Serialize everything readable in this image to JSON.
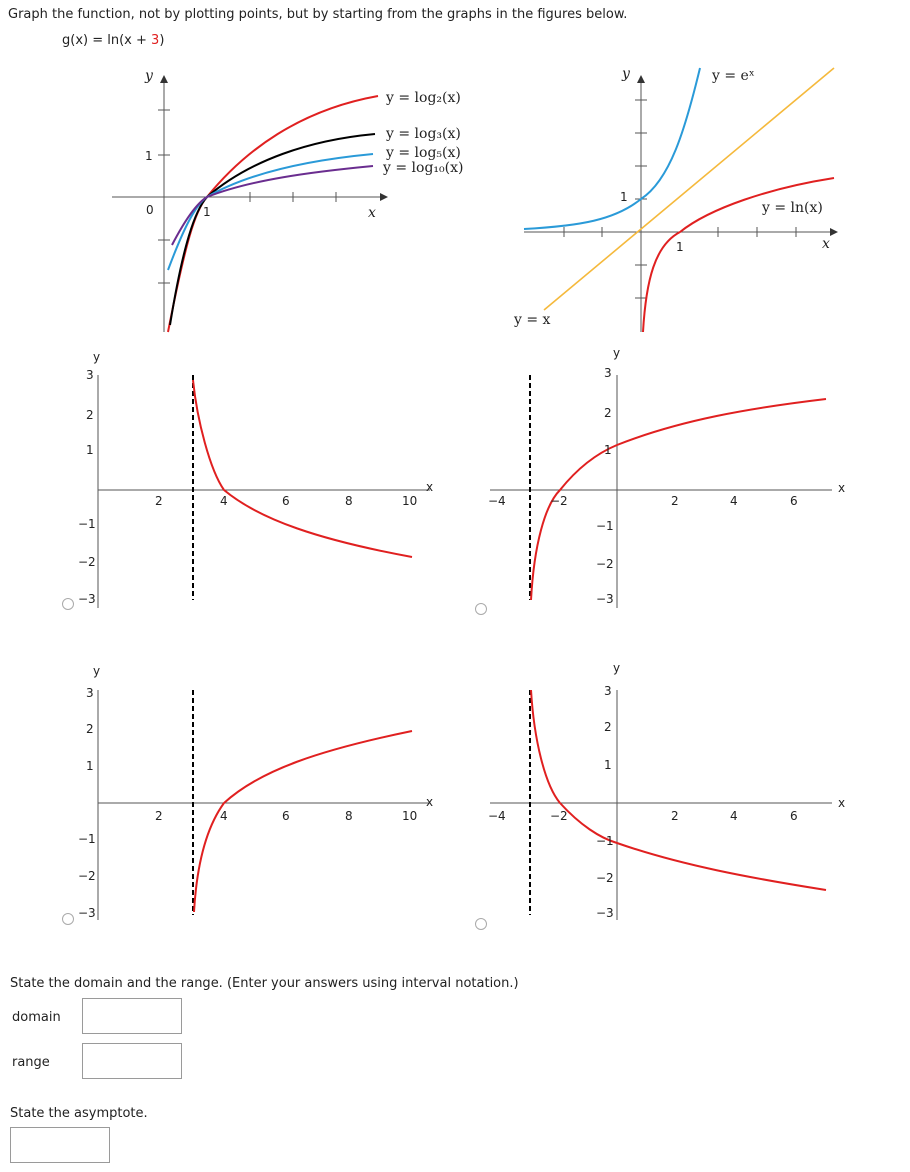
{
  "prompt": "Graph the function, not by plotting points, but by starting from the graphs in the figures below.",
  "function": {
    "lhs": "g(x) = ln(x + ",
    "constant": "3",
    "close": ")"
  },
  "reference_graphs": {
    "log_family": {
      "y_label": "y",
      "x_label": "x",
      "origin": "0",
      "one_x": "1",
      "one_y": "1",
      "curves": [
        {
          "label": "y = log₂(x)",
          "color": "#e02020"
        },
        {
          "label": "y = log₃(x)",
          "color": "#000000"
        },
        {
          "label": "y = log₅(x)",
          "color": "#2a9ad8"
        },
        {
          "label": "y = log₁₀(x)",
          "color": "#6a2d8f"
        }
      ]
    },
    "exp_ln": {
      "y_label": "y",
      "x_label": "x",
      "one_x": "1",
      "one_y": "1",
      "curves": [
        {
          "label": "y = eˣ",
          "color": "#2a9ad8"
        },
        {
          "label": "y = ln(x)",
          "color": "#e02020"
        },
        {
          "label": "y = x",
          "color": "#f5b93c"
        }
      ]
    }
  },
  "options": [
    {
      "id": "A",
      "x_ticks": [
        "2",
        "4",
        "6",
        "8",
        "10"
      ],
      "y_ticks": [
        "3",
        "2",
        "1",
        "−1",
        "−2",
        "−3"
      ],
      "x_label": "x",
      "y_label": "y"
    },
    {
      "id": "B",
      "x_ticks": [
        "−4",
        "−2",
        "2",
        "4",
        "6"
      ],
      "y_ticks": [
        "3",
        "2",
        "1",
        "−1",
        "−2",
        "−3"
      ],
      "x_label": "x",
      "y_label": "y"
    },
    {
      "id": "C",
      "x_ticks": [
        "2",
        "4",
        "6",
        "8",
        "10"
      ],
      "y_ticks": [
        "3",
        "2",
        "1",
        "−1",
        "−2",
        "−3"
      ],
      "x_label": "x",
      "y_label": "y"
    },
    {
      "id": "D",
      "x_ticks": [
        "−4",
        "−2",
        "2",
        "4",
        "6"
      ],
      "y_ticks": [
        "3",
        "2",
        "1",
        "−1",
        "−2",
        "−3"
      ],
      "x_label": "x",
      "y_label": "y"
    }
  ],
  "domain_range_prompt": "State the domain and the range. (Enter your answers using interval notation.)",
  "domain_label": "domain",
  "range_label": "range",
  "asymptote_prompt": "State the asymptote.",
  "inputs": {
    "domain": "",
    "range": "",
    "asymptote": ""
  },
  "colors": {
    "curve": "#e02020",
    "axis": "#555555"
  }
}
